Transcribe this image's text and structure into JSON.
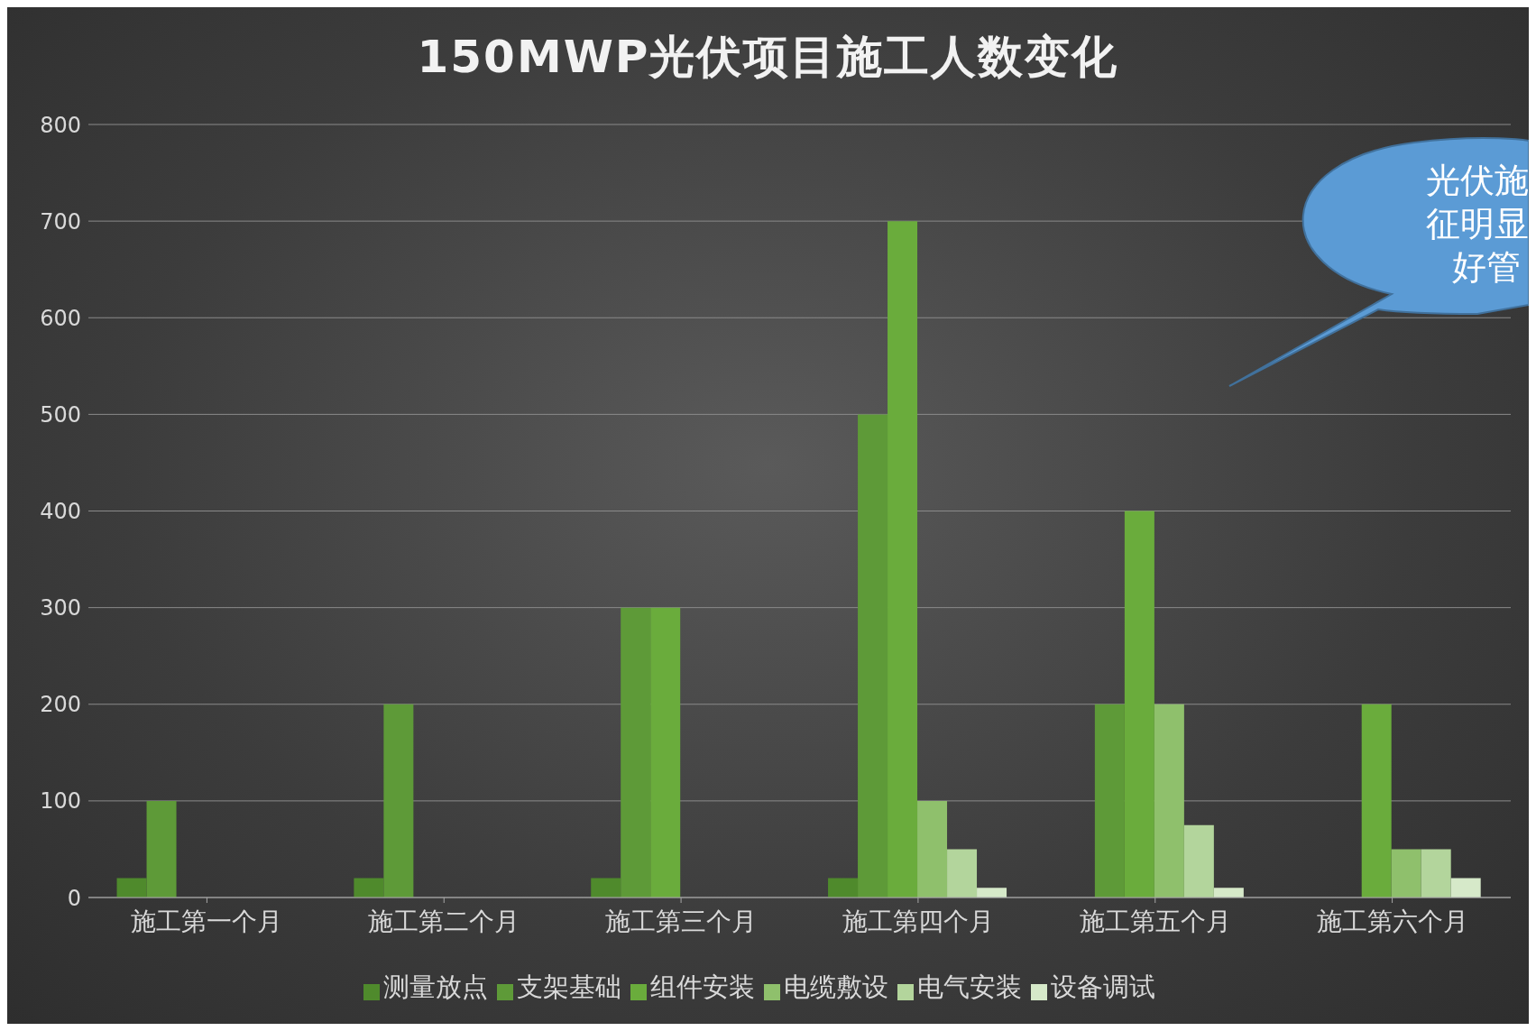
{
  "chart_data": {
    "type": "bar",
    "title": "150MWP光伏项目施工人数变化",
    "categories": [
      "施工第一个月",
      "施工第二个月",
      "施工第三个月",
      "施工第四个月",
      "施工第五个月",
      "施工第六个月"
    ],
    "series": [
      {
        "name": "测量放点",
        "color": "#4f8a2c",
        "values": [
          20,
          20,
          20,
          20,
          null,
          null
        ]
      },
      {
        "name": "支架基础",
        "color": "#5e9a38",
        "values": [
          100,
          200,
          300,
          500,
          200,
          null
        ]
      },
      {
        "name": "组件安装",
        "color": "#6aac3c",
        "values": [
          null,
          null,
          300,
          700,
          400,
          200
        ]
      },
      {
        "name": "电缆敷设",
        "color": "#8fc06c",
        "values": [
          null,
          null,
          null,
          100,
          200,
          50
        ]
      },
      {
        "name": "电气安装",
        "color": "#b3d59c",
        "values": [
          null,
          null,
          null,
          50,
          75,
          50
        ]
      },
      {
        "name": "设备调试",
        "color": "#d6e9c9",
        "values": [
          null,
          null,
          null,
          10,
          10,
          20
        ]
      }
    ],
    "ylim": [
      0,
      800
    ],
    "yticks": [
      0,
      100,
      200,
      300,
      400,
      500,
      600,
      700,
      800
    ],
    "grid": "y",
    "legend": "bottom",
    "annotations": [
      "光伏施",
      "征明显",
      "好管"
    ]
  }
}
